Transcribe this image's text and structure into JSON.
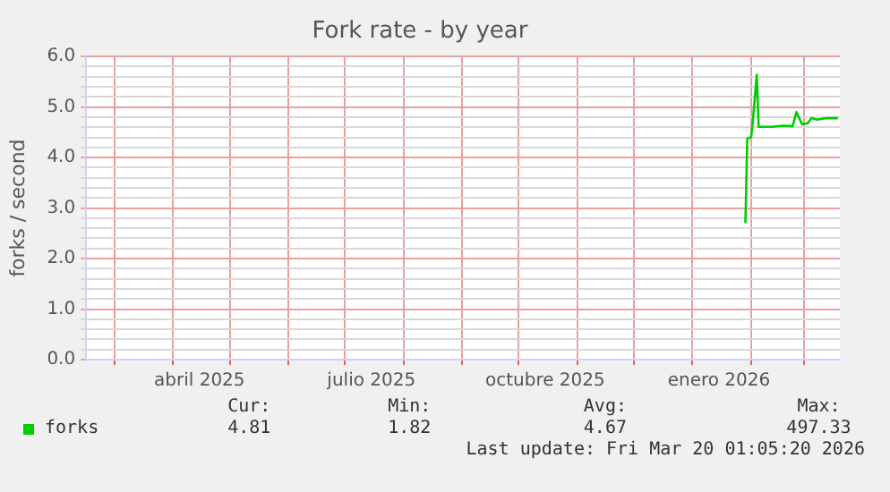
{
  "chart_data": {
    "type": "line",
    "title": "Fork rate - by year",
    "ylabel": "forks / second",
    "series": [
      {
        "name": "forks",
        "color": "#00cc00",
        "x": [
          "2026-01-29",
          "2026-01-30",
          "2026-02-01",
          "2026-02-02",
          "2026-02-04",
          "2026-02-05",
          "2026-02-12",
          "2026-02-18",
          "2026-02-23",
          "2026-02-25",
          "2026-02-28",
          "2026-03-03",
          "2026-03-05",
          "2026-03-08",
          "2026-03-13",
          "2026-03-19"
        ],
        "values": [
          2.7,
          4.38,
          4.4,
          4.75,
          5.64,
          4.61,
          4.61,
          4.63,
          4.62,
          4.9,
          4.66,
          4.68,
          4.78,
          4.75,
          4.78,
          4.78
        ]
      }
    ],
    "xlim": [
      "2025-02-14",
      "2026-03-20"
    ],
    "xticks": [
      {
        "value": "2025-03-01",
        "label": null
      },
      {
        "value": "2025-04-01",
        "label": null
      },
      {
        "value": "2025-04-15",
        "label": "abril 2025"
      },
      {
        "value": "2025-05-01",
        "label": null
      },
      {
        "value": "2025-06-01",
        "label": null
      },
      {
        "value": "2025-07-01",
        "label": null
      },
      {
        "value": "2025-07-15",
        "label": "julio 2025"
      },
      {
        "value": "2025-08-01",
        "label": null
      },
      {
        "value": "2025-09-01",
        "label": null
      },
      {
        "value": "2025-10-01",
        "label": null
      },
      {
        "value": "2025-10-15",
        "label": "octubre 2025"
      },
      {
        "value": "2025-11-01",
        "label": null
      },
      {
        "value": "2025-12-01",
        "label": null
      },
      {
        "value": "2026-01-01",
        "label": null
      },
      {
        "value": "2026-01-15",
        "label": "enero 2026"
      },
      {
        "value": "2026-02-01",
        "label": null
      },
      {
        "value": "2026-03-01",
        "label": null
      }
    ],
    "ylim": [
      0,
      6
    ],
    "yticks": [
      {
        "value": 0,
        "label": "0.0"
      },
      {
        "value": 0.2,
        "label": null
      },
      {
        "value": 0.4,
        "label": null
      },
      {
        "value": 0.6,
        "label": null
      },
      {
        "value": 0.8,
        "label": null
      },
      {
        "value": 1,
        "label": "1.0"
      },
      {
        "value": 1.2,
        "label": null
      },
      {
        "value": 1.4,
        "label": null
      },
      {
        "value": 1.6,
        "label": null
      },
      {
        "value": 1.8,
        "label": null
      },
      {
        "value": 2,
        "label": "2.0"
      },
      {
        "value": 2.2,
        "label": null
      },
      {
        "value": 2.4,
        "label": null
      },
      {
        "value": 2.6,
        "label": null
      },
      {
        "value": 2.8,
        "label": null
      },
      {
        "value": 3,
        "label": "3.0"
      },
      {
        "value": 3.2,
        "label": null
      },
      {
        "value": 3.4,
        "label": null
      },
      {
        "value": 3.6,
        "label": null
      },
      {
        "value": 3.8,
        "label": null
      },
      {
        "value": 4,
        "label": "4.0"
      },
      {
        "value": 4.2,
        "label": null
      },
      {
        "value": 4.4,
        "label": null
      },
      {
        "value": 4.6,
        "label": null
      },
      {
        "value": 4.8,
        "label": null
      },
      {
        "value": 5,
        "label": "5.0"
      },
      {
        "value": 5.2,
        "label": null
      },
      {
        "value": 5.4,
        "label": null
      },
      {
        "value": 5.6,
        "label": null
      },
      {
        "value": 5.8,
        "label": null
      },
      {
        "value": 6,
        "label": "6.0"
      }
    ],
    "grid": true,
    "legend": "bottom",
    "marker": "none",
    "line_style": "solid",
    "annotations": [
      "Cur:",
      "Min:",
      "Avg:",
      "Max:",
      "4.81",
      "1.82",
      "4.67",
      "497.33",
      "Last update: Fri Mar 20 01:05:20 2026"
    ]
  }
}
